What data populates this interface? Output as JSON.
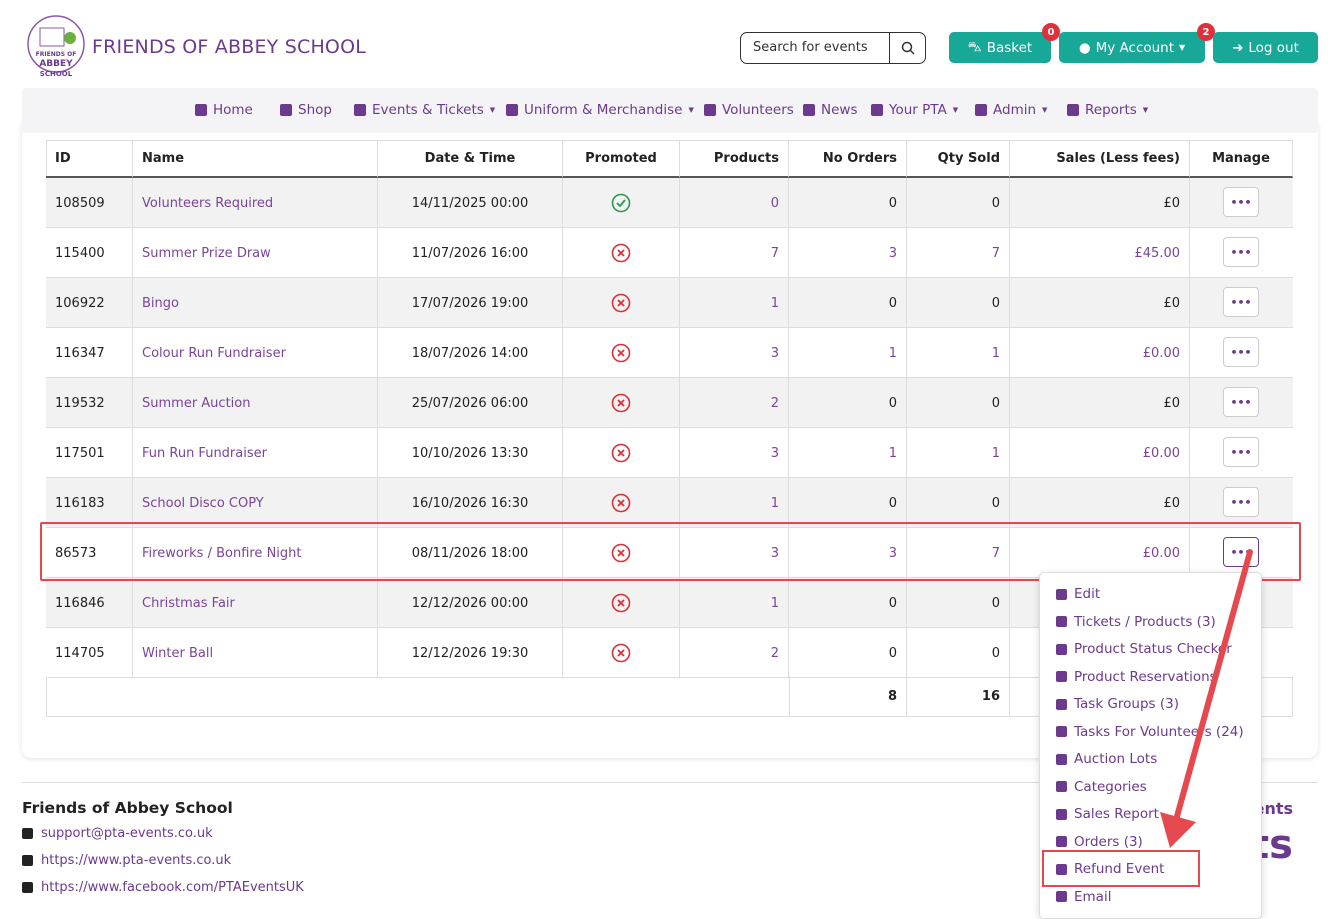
{
  "header": {
    "logo_lines": [
      "FRIENDS OF",
      "ABBEY",
      "SCHOOL"
    ],
    "brand": "FRIENDS OF ABBEY SCHOOL",
    "search_placeholder": "Search for events",
    "buttons": [
      {
        "label": "Basket",
        "badge": "0"
      },
      {
        "label": "My Account",
        "badge": "2"
      },
      {
        "label": "Log out"
      }
    ]
  },
  "nav": [
    "Home",
    "Shop",
    "Events & Tickets",
    "Uniform & Merchandise",
    "Volunteers",
    "News",
    "Your PTA",
    "Admin",
    "Reports"
  ],
  "table": {
    "columns": [
      "ID",
      "Name",
      "Date & Time",
      "Promoted",
      "Products",
      "No Orders",
      "Qty Sold",
      "Sales (Less fees)",
      "Manage"
    ],
    "rows": [
      {
        "id": "108509",
        "name": "Volunteers Required",
        "date": "14/11/2025 00:00",
        "promoted": true,
        "products": "0",
        "orders": "0",
        "qty": "0",
        "sales": "£0"
      },
      {
        "id": "115400",
        "name": "Summer Prize Draw",
        "date": "11/07/2026 16:00",
        "promoted": false,
        "products": "7",
        "orders": "3",
        "qty": "7",
        "sales": "£45.00"
      },
      {
        "id": "106922",
        "name": "Bingo",
        "date": "17/07/2026 19:00",
        "promoted": false,
        "products": "1",
        "orders": "0",
        "qty": "0",
        "sales": "£0"
      },
      {
        "id": "116347",
        "name": "Colour Run Fundraiser",
        "date": "18/07/2026 14:00",
        "promoted": false,
        "products": "3",
        "orders": "1",
        "qty": "1",
        "sales": "£0.00"
      },
      {
        "id": "119532",
        "name": "Summer Auction",
        "date": "25/07/2026 06:00",
        "promoted": false,
        "products": "2",
        "orders": "0",
        "qty": "0",
        "sales": "£0"
      },
      {
        "id": "117501",
        "name": "Fun Run Fundraiser",
        "date": "10/10/2026 13:30",
        "promoted": false,
        "products": "3",
        "orders": "1",
        "qty": "1",
        "sales": "£0.00"
      },
      {
        "id": "116183",
        "name": "School Disco COPY",
        "date": "16/10/2026 16:30",
        "promoted": false,
        "products": "1",
        "orders": "0",
        "qty": "0",
        "sales": "£0"
      },
      {
        "id": "86573",
        "name": "Fireworks / Bonfire Night",
        "date": "08/11/2026 18:00",
        "promoted": false,
        "products": "3",
        "orders": "3",
        "qty": "7",
        "sales": "£0.00"
      },
      {
        "id": "116846",
        "name": "Christmas Fair",
        "date": "12/12/2026 00:00",
        "promoted": false,
        "products": "1",
        "orders": "0",
        "qty": "0",
        "sales": ""
      },
      {
        "id": "114705",
        "name": "Winter Ball",
        "date": "12/12/2026 19:30",
        "promoted": false,
        "products": "2",
        "orders": "0",
        "qty": "0",
        "sales": ""
      }
    ],
    "totals": {
      "orders": "8",
      "qty": "16"
    }
  },
  "dropdown": [
    "Edit",
    "Tickets / Products (3)",
    "Product Status Checker",
    "Product Reservations",
    "Task Groups (3)",
    "Tasks For Volunteers (24)",
    "Auction Lots",
    "Categories",
    "Sales Report",
    "Orders (3)",
    "Refund Event",
    "Email"
  ],
  "footer": {
    "title": "Friends of Abbey School",
    "links": [
      "support@pta-events.co.uk",
      "https://www.pta-events.co.uk",
      "https://www.facebook.com/PTAEventsUK"
    ],
    "right_heading": "PTA Events",
    "right_logo": "events"
  }
}
